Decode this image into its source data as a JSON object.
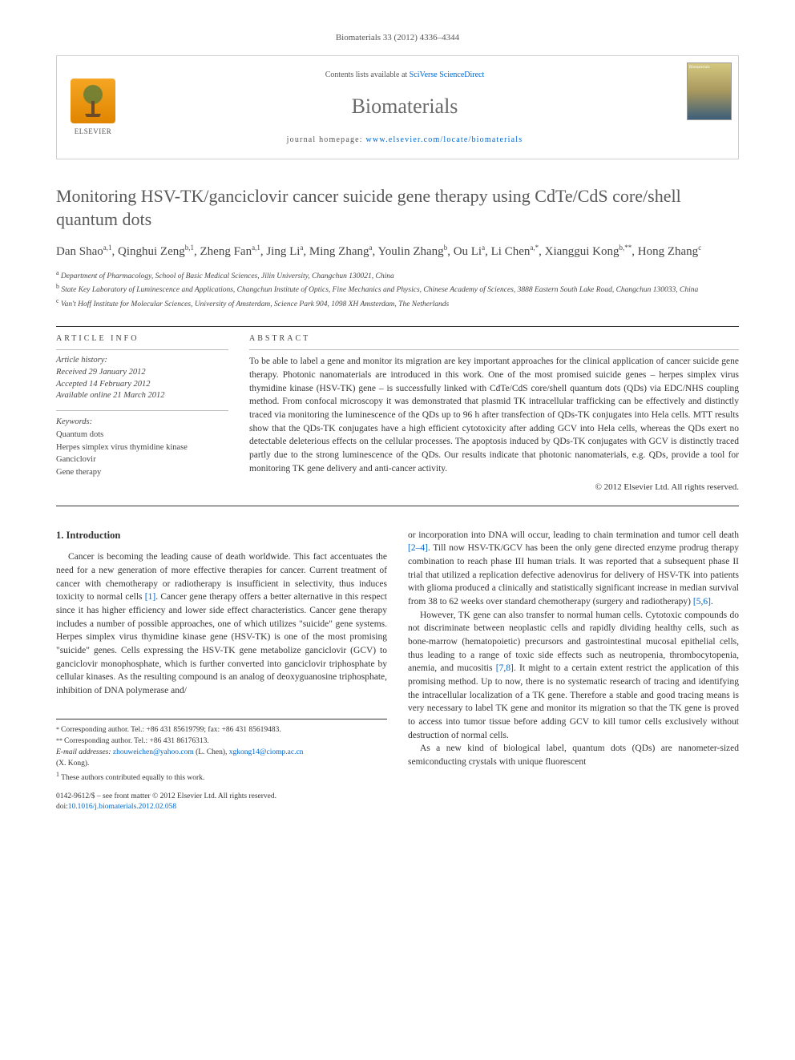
{
  "journal_ref": "Biomaterials 33 (2012) 4336–4344",
  "header": {
    "contents_prefix": "Contents lists available at ",
    "contents_link": "SciVerse ScienceDirect",
    "journal_name": "Biomaterials",
    "homepage_prefix": "journal homepage: ",
    "homepage_link": "www.elsevier.com/locate/biomaterials",
    "publisher": "ELSEVIER"
  },
  "article": {
    "title": "Monitoring HSV-TK/ganciclovir cancer suicide gene therapy using CdTe/CdS core/shell quantum dots",
    "authors_html": "Dan Shao<sup>a,1</sup>, Qinghui Zeng<sup>b,1</sup>, Zheng Fan<sup>a,1</sup>, Jing Li<sup>a</sup>, Ming Zhang<sup>a</sup>, Youlin Zhang<sup>b</sup>, Ou Li<sup>a</sup>, Li Chen<sup>a,*</sup>, Xianggui Kong<sup>b,**</sup>, Hong Zhang<sup>c</sup>",
    "affiliations": {
      "a": "Department of Pharmacology, School of Basic Medical Sciences, Jilin University, Changchun 130021, China",
      "b": "State Key Laboratory of Luminescence and Applications, Changchun Institute of Optics, Fine Mechanics and Physics, Chinese Academy of Sciences, 3888 Eastern South Lake Road, Changchun 130033, China",
      "c": "Van't Hoff Institute for Molecular Sciences, University of Amsterdam, Science Park 904, 1098 XH Amsterdam, The Netherlands"
    }
  },
  "info": {
    "label": "ARTICLE INFO",
    "history_label": "Article history:",
    "received": "Received 29 January 2012",
    "accepted": "Accepted 14 February 2012",
    "online": "Available online 21 March 2012",
    "keywords_label": "Keywords:",
    "keywords": [
      "Quantum dots",
      "Herpes simplex virus thymidine kinase",
      "Ganciclovir",
      "Gene therapy"
    ]
  },
  "abstract": {
    "label": "ABSTRACT",
    "text": "To be able to label a gene and monitor its migration are key important approaches for the clinical application of cancer suicide gene therapy. Photonic nanomaterials are introduced in this work. One of the most promised suicide genes – herpes simplex virus thymidine kinase (HSV-TK) gene – is successfully linked with CdTe/CdS core/shell quantum dots (QDs) via EDC/NHS coupling method. From confocal microscopy it was demonstrated that plasmid TK intracellular trafficking can be effectively and distinctly traced via monitoring the luminescence of the QDs up to 96 h after transfection of QDs-TK conjugates into Hela cells. MTT results show that the QDs-TK conjugates have a high efficient cytotoxicity after adding GCV into Hela cells, whereas the QDs exert no detectable deleterious effects on the cellular processes. The apoptosis induced by QDs-TK conjugates with GCV is distinctly traced partly due to the strong luminescence of the QDs. Our results indicate that photonic nanomaterials, e.g. QDs, provide a tool for monitoring TK gene delivery and anti-cancer activity.",
    "copyright": "© 2012 Elsevier Ltd. All rights reserved."
  },
  "body": {
    "intro_heading": "1. Introduction",
    "col1_para1": "Cancer is becoming the leading cause of death worldwide. This fact accentuates the need for a new generation of more effective therapies for cancer. Current treatment of cancer with chemotherapy or radiotherapy is insufficient in selectivity, thus induces toxicity to normal cells [1]. Cancer gene therapy offers a better alternative in this respect since it has higher efficiency and lower side effect characteristics. Cancer gene therapy includes a number of possible approaches, one of which utilizes \"suicide\" gene systems. Herpes simplex virus thymidine kinase gene (HSV-TK) is one of the most promising \"suicide\" genes. Cells expressing the HSV-TK gene metabolize ganciclovir (GCV) to ganciclovir monophosphate, which is further converted into ganciclovir triphosphate by cellular kinases. As the resulting compound is an analog of deoxyguanosine triphosphate, inhibition of DNA polymerase and/",
    "col2_para1": "or incorporation into DNA will occur, leading to chain termination and tumor cell death [2–4]. Till now HSV-TK/GCV has been the only gene directed enzyme prodrug therapy combination to reach phase III human trials. It was reported that a subsequent phase II trial that utilized a replication defective adenovirus for delivery of HSV-TK into patients with glioma produced a clinically and statistically significant increase in median survival from 38 to 62 weeks over standard chemotherapy (surgery and radiotherapy) [5,6].",
    "col2_para2": "However, TK gene can also transfer to normal human cells. Cytotoxic compounds do not discriminate between neoplastic cells and rapidly dividing healthy cells, such as bone-marrow (hematopoietic) precursors and gastrointestinal mucosal epithelial cells, thus leading to a range of toxic side effects such as neutropenia, thrombocytopenia, anemia, and mucositis [7,8]. It might to a certain extent restrict the application of this promising method. Up to now, there is no systematic research of tracing and identifying the intracellular localization of a TK gene. Therefore a stable and good tracing means is very necessary to label TK gene and monitor its migration so that the TK gene is proved to access into tumor tissue before adding GCV to kill tumor cells exclusively without destruction of normal cells.",
    "col2_para3": "As a new kind of biological label, quantum dots (QDs) are nanometer-sized semiconducting crystals with unique fluorescent"
  },
  "footnotes": {
    "corr1": "* Corresponding author. Tel.: +86 431 85619799; fax: +86 431 85619483.",
    "corr2": "** Corresponding author. Tel.: +86 431 86176313.",
    "emails_label": "E-mail addresses: ",
    "email1": "zhouweichen@yahoo.com",
    "email1_who": " (L. Chen), ",
    "email2": "xgkong14@ciomp.ac.cn",
    "email2_who": " (X. Kong).",
    "equal": "These authors contributed equally to this work."
  },
  "footer": {
    "line1": "0142-9612/$ – see front matter © 2012 Elsevier Ltd. All rights reserved.",
    "doi_prefix": "doi:",
    "doi": "10.1016/j.biomaterials.2012.02.058"
  },
  "colors": {
    "link": "#0066cc",
    "text": "#333333",
    "muted": "#555555",
    "rule": "#333333",
    "rule_light": "#bbbbbb"
  }
}
